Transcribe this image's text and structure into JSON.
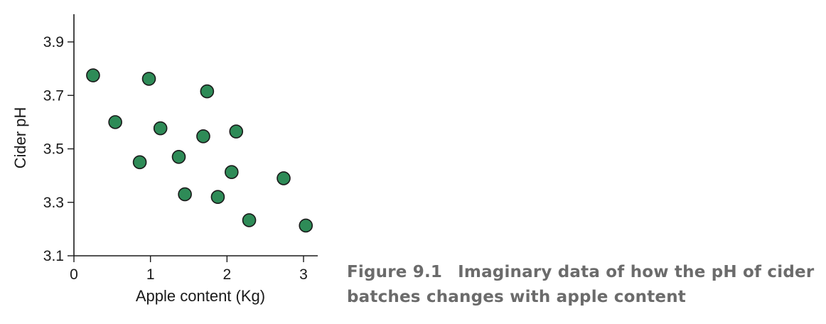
{
  "chart_data": {
    "type": "scatter",
    "xlabel": "Apple content (Kg)",
    "ylabel": "Cider pH",
    "xlim": [
      0,
      3.2
    ],
    "ylim": [
      3.1,
      4.0
    ],
    "x_ticks": [
      0,
      1,
      2,
      3
    ],
    "y_ticks": [
      3.1,
      3.3,
      3.5,
      3.7,
      3.9
    ],
    "x_tick_labels": [
      "0",
      "1",
      "2",
      "3"
    ],
    "y_tick_labels": [
      "3.1",
      "3.3",
      "3.5",
      "3.7",
      "3.9"
    ],
    "grid": false,
    "marker_color": "#2e8b57",
    "marker_edge_color": "#1a1a1a",
    "points": [
      {
        "x": 0.25,
        "y": 3.775
      },
      {
        "x": 0.54,
        "y": 3.6
      },
      {
        "x": 0.86,
        "y": 3.45
      },
      {
        "x": 0.98,
        "y": 3.762
      },
      {
        "x": 1.13,
        "y": 3.577
      },
      {
        "x": 1.37,
        "y": 3.47
      },
      {
        "x": 1.45,
        "y": 3.33
      },
      {
        "x": 1.69,
        "y": 3.547
      },
      {
        "x": 1.74,
        "y": 3.715
      },
      {
        "x": 1.88,
        "y": 3.32
      },
      {
        "x": 2.06,
        "y": 3.413
      },
      {
        "x": 2.12,
        "y": 3.565
      },
      {
        "x": 2.29,
        "y": 3.233
      },
      {
        "x": 2.74,
        "y": 3.39
      },
      {
        "x": 3.03,
        "y": 3.213
      }
    ]
  },
  "caption": {
    "figure_number": "Figure 9.1",
    "text": "Imaginary data of how the pH of cider batches changes with apple content"
  }
}
